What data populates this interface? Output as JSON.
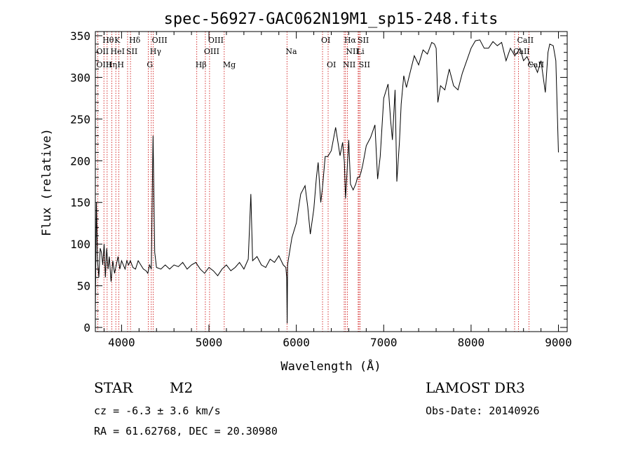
{
  "chart_data": {
    "type": "line",
    "title": "spec-56927-GAC062N19M1_sp15-248.fits",
    "xlabel": "Wavelength (Å)",
    "ylabel": "Flux (relative)",
    "xlim": [
      3700,
      9100
    ],
    "ylim": [
      -5,
      355
    ],
    "xticks": [
      4000,
      5000,
      6000,
      7000,
      8000,
      9000
    ],
    "yticks": [
      0,
      50,
      100,
      150,
      200,
      250,
      300,
      350
    ],
    "grid": false,
    "series": [
      {
        "name": "spectrum",
        "x": [
          3700,
          3712,
          3725,
          3740,
          3755,
          3770,
          3785,
          3800,
          3815,
          3830,
          3845,
          3860,
          3880,
          3900,
          3920,
          3940,
          3960,
          3980,
          4000,
          4020,
          4040,
          4060,
          4080,
          4100,
          4130,
          4160,
          4190,
          4220,
          4250,
          4280,
          4300,
          4320,
          4340,
          4360,
          4380,
          4400,
          4450,
          4500,
          4550,
          4600,
          4650,
          4700,
          4750,
          4800,
          4850,
          4900,
          4950,
          5000,
          5050,
          5100,
          5150,
          5200,
          5250,
          5300,
          5350,
          5400,
          5450,
          5480,
          5500,
          5550,
          5600,
          5650,
          5700,
          5750,
          5800,
          5850,
          5880,
          5890,
          5895,
          5900,
          5910,
          5950,
          6000,
          6050,
          6100,
          6130,
          6160,
          6200,
          6230,
          6250,
          6280,
          6300,
          6330,
          6360,
          6400,
          6450,
          6500,
          6530,
          6550,
          6563,
          6580,
          6600,
          6620,
          6650,
          6680,
          6700,
          6720,
          6740,
          6760,
          6800,
          6850,
          6900,
          6930,
          6960,
          7000,
          7050,
          7080,
          7100,
          7130,
          7150,
          7180,
          7200,
          7230,
          7260,
          7300,
          7350,
          7400,
          7450,
          7500,
          7550,
          7580,
          7600,
          7620,
          7650,
          7700,
          7750,
          7800,
          7850,
          7900,
          7950,
          8000,
          8050,
          8100,
          8150,
          8200,
          8250,
          8300,
          8350,
          8400,
          8450,
          8500,
          8530,
          8560,
          8600,
          8640,
          8680,
          8720,
          8760,
          8800,
          8850,
          8880,
          8900,
          8940,
          8970,
          9000
        ],
        "values": [
          20,
          150,
          80,
          60,
          95,
          90,
          75,
          100,
          60,
          95,
          70,
          85,
          55,
          80,
          65,
          75,
          85,
          70,
          80,
          75,
          70,
          80,
          75,
          80,
          72,
          70,
          80,
          75,
          70,
          68,
          65,
          75,
          70,
          230,
          90,
          72,
          70,
          75,
          70,
          75,
          73,
          78,
          70,
          75,
          78,
          70,
          65,
          72,
          68,
          62,
          70,
          75,
          68,
          72,
          78,
          70,
          82,
          160,
          80,
          85,
          75,
          72,
          82,
          78,
          86,
          75,
          72,
          60,
          5,
          75,
          82,
          108,
          125,
          160,
          170,
          145,
          112,
          142,
          180,
          198,
          150,
          168,
          205,
          205,
          212,
          240,
          206,
          222,
          198,
          155,
          185,
          225,
          172,
          165,
          172,
          180,
          180,
          186,
          195,
          218,
          228,
          243,
          178,
          205,
          275,
          292,
          248,
          225,
          285,
          175,
          222,
          268,
          302,
          288,
          305,
          326,
          315,
          333,
          328,
          342,
          340,
          335,
          270,
          290,
          285,
          310,
          290,
          285,
          305,
          320,
          335,
          344,
          345,
          335,
          335,
          343,
          338,
          342,
          320,
          335,
          326,
          330,
          335,
          320,
          325,
          315,
          316,
          306,
          320,
          282,
          330,
          340,
          338,
          320,
          210
        ]
      }
    ],
    "emission_lines": [
      {
        "label": "Hθ",
        "wl": 3798,
        "row": 1
      },
      {
        "label": "K",
        "wl": 3934,
        "row": 1
      },
      {
        "label": "Hδ",
        "wl": 4102,
        "row": 1
      },
      {
        "label": "OIII",
        "wl": 4363,
        "row": 1
      },
      {
        "label": "OIII",
        "wl": 5007,
        "row": 1
      },
      {
        "label": "OI",
        "wl": 6300,
        "row": 1
      },
      {
        "label": "Hα",
        "wl": 6563,
        "row": 1
      },
      {
        "label": "SII",
        "wl": 6717,
        "row": 1
      },
      {
        "label": "CaII",
        "wl": 8542,
        "row": 1
      },
      {
        "label": "OII",
        "wl": 3727,
        "row": 2
      },
      {
        "label": "HeI",
        "wl": 3889,
        "row": 2
      },
      {
        "label": "SII",
        "wl": 4069,
        "row": 2
      },
      {
        "label": "Hγ",
        "wl": 4340,
        "row": 2
      },
      {
        "label": "OIII",
        "wl": 4959,
        "row": 2
      },
      {
        "label": "Na",
        "wl": 5893,
        "row": 2
      },
      {
        "label": "NII",
        "wl": 6584,
        "row": 2
      },
      {
        "label": "Li",
        "wl": 6708,
        "row": 2
      },
      {
        "label": "CaII",
        "wl": 8498,
        "row": 2
      },
      {
        "label": "OIII",
        "wl": 3727,
        "row": 3
      },
      {
        "label": "Hη",
        "wl": 3835,
        "row": 3
      },
      {
        "label": "H",
        "wl": 3968,
        "row": 3
      },
      {
        "label": "G",
        "wl": 4305,
        "row": 3
      },
      {
        "label": "Hβ",
        "wl": 4861,
        "row": 3
      },
      {
        "label": "Mg",
        "wl": 5175,
        "row": 3
      },
      {
        "label": "OI",
        "wl": 6364,
        "row": 3
      },
      {
        "label": "NII",
        "wl": 6548,
        "row": 3
      },
      {
        "label": "SII",
        "wl": 6731,
        "row": 3
      },
      {
        "label": "CaII",
        "wl": 8662,
        "row": 3
      }
    ],
    "marker_lines": [
      3727,
      3798,
      3835,
      3889,
      3934,
      3968,
      4069,
      4102,
      4305,
      4340,
      4363,
      4861,
      4959,
      5007,
      5175,
      5893,
      6300,
      6364,
      6548,
      6563,
      6584,
      6708,
      6717,
      6731,
      8498,
      8542,
      8662
    ]
  },
  "info": {
    "object_class": "STAR",
    "subclass": "M2",
    "survey": "LAMOST DR3",
    "cz": "cz = -6.3 ± 3.6 km/s",
    "obs_date": "Obs-Date: 20140926",
    "coords": "RA =  61.62768, DEC =  20.30980"
  },
  "colors": {
    "line": "#000000",
    "marker": "#cc0000",
    "text": "#000000"
  }
}
